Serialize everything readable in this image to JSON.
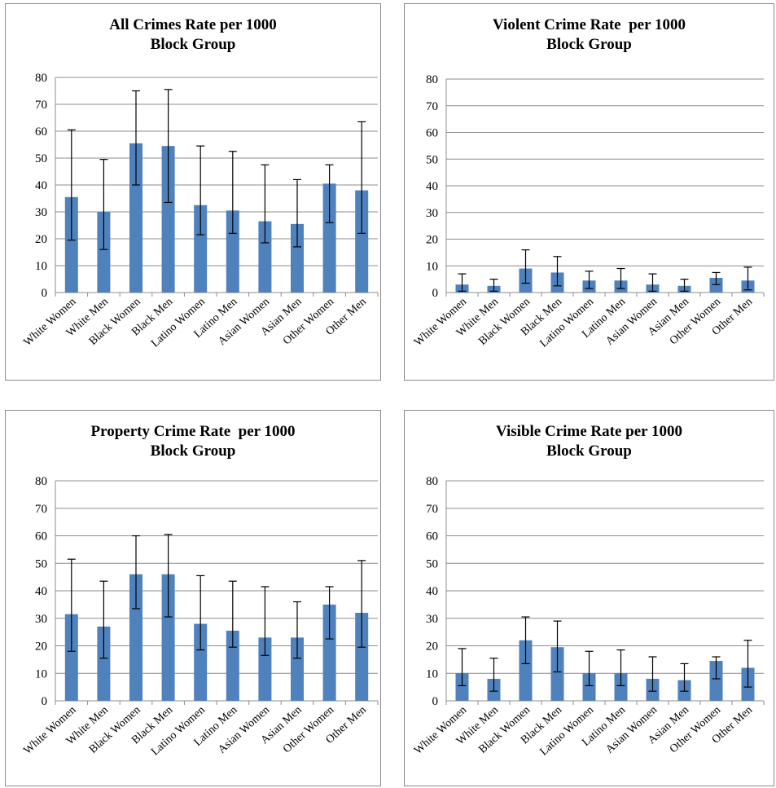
{
  "chart_data": [
    {
      "type": "bar",
      "title_lines": [
        "All Crimes Rate per 1000",
        "Block Group"
      ],
      "categories": [
        "White Women",
        "White Men",
        "Black Women",
        "Black Men",
        "Latino Women",
        "Latino Men",
        "Asian Women",
        "Asian Men",
        "Other Women",
        "Other Men"
      ],
      "values": [
        35.5,
        30,
        55.5,
        54.5,
        32.5,
        30.5,
        26.5,
        25.5,
        40.5,
        38
      ],
      "error_low": [
        19.5,
        16,
        40,
        33.5,
        21.5,
        22,
        18.5,
        17,
        26,
        22
      ],
      "error_high": [
        60.5,
        49.5,
        75,
        75.5,
        54.5,
        52.5,
        47.5,
        42,
        47.5,
        63.5
      ],
      "ylim": [
        0,
        80
      ],
      "yticks": [
        0,
        10,
        20,
        30,
        40,
        50,
        60,
        70,
        80
      ],
      "grid": true,
      "bar_color": "#4f81bd"
    },
    {
      "type": "bar",
      "title_lines": [
        "Violent Crime Rate  per 1000",
        "Block Group"
      ],
      "categories": [
        "White Women",
        "White Men",
        "Black Women",
        "Black Men",
        "Latino Women",
        "Latino Men",
        "Asian Women",
        "Asian Men",
        "Other Women",
        "Other Men"
      ],
      "values": [
        3,
        2.5,
        9,
        7.5,
        4.5,
        4.5,
        3,
        2.5,
        5.5,
        4.5
      ],
      "error_low": [
        0.5,
        0.5,
        3.5,
        2.5,
        1.5,
        1.5,
        0.5,
        0.5,
        3,
        1
      ],
      "error_high": [
        7,
        5,
        16,
        13.5,
        8,
        9,
        7,
        5,
        7.5,
        9.5
      ],
      "ylim": [
        0,
        80
      ],
      "yticks": [
        0,
        10,
        20,
        30,
        40,
        50,
        60,
        70,
        80
      ],
      "grid": true,
      "bar_color": "#4f81bd"
    },
    {
      "type": "bar",
      "title_lines": [
        "Property Crime Rate  per 1000",
        "Block Group"
      ],
      "categories": [
        "White Women",
        "White Men",
        "Black Women",
        "Black Men",
        "Latino Women",
        "Latino Men",
        "Asian Women",
        "Asian Men",
        "Other Women",
        "Other Men"
      ],
      "values": [
        31.5,
        27,
        46,
        46,
        28,
        25.5,
        23,
        23,
        35,
        32
      ],
      "error_low": [
        18,
        15.5,
        33.5,
        30.5,
        18.5,
        19.5,
        16.5,
        15.5,
        22.5,
        19.5
      ],
      "error_high": [
        51.5,
        43.5,
        60,
        60.5,
        45.5,
        43.5,
        41.5,
        36,
        41.5,
        51
      ],
      "ylim": [
        0,
        80
      ],
      "yticks": [
        0,
        10,
        20,
        30,
        40,
        50,
        60,
        70,
        80
      ],
      "grid": true,
      "bar_color": "#4f81bd"
    },
    {
      "type": "bar",
      "title_lines": [
        "Visible Crime Rate per 1000",
        "Block Group"
      ],
      "categories": [
        "White Women",
        "White Men",
        "Black Women",
        "Black Men",
        "Latino Women",
        "Latino Men",
        "Asian Women",
        "Asian Men",
        "Other Women",
        "Other Men"
      ],
      "values": [
        10,
        8,
        22,
        19.5,
        10,
        10,
        8,
        7.5,
        14.5,
        12
      ],
      "error_low": [
        5.5,
        3.5,
        13.5,
        10.5,
        5.5,
        5.5,
        3.5,
        3.5,
        8,
        5
      ],
      "error_high": [
        19,
        15.5,
        30.5,
        29,
        18,
        18.5,
        16,
        13.5,
        16,
        22
      ],
      "ylim": [
        0,
        80
      ],
      "yticks": [
        0,
        10,
        20,
        30,
        40,
        50,
        60,
        70,
        80
      ],
      "grid": true,
      "bar_color": "#4f81bd"
    }
  ]
}
